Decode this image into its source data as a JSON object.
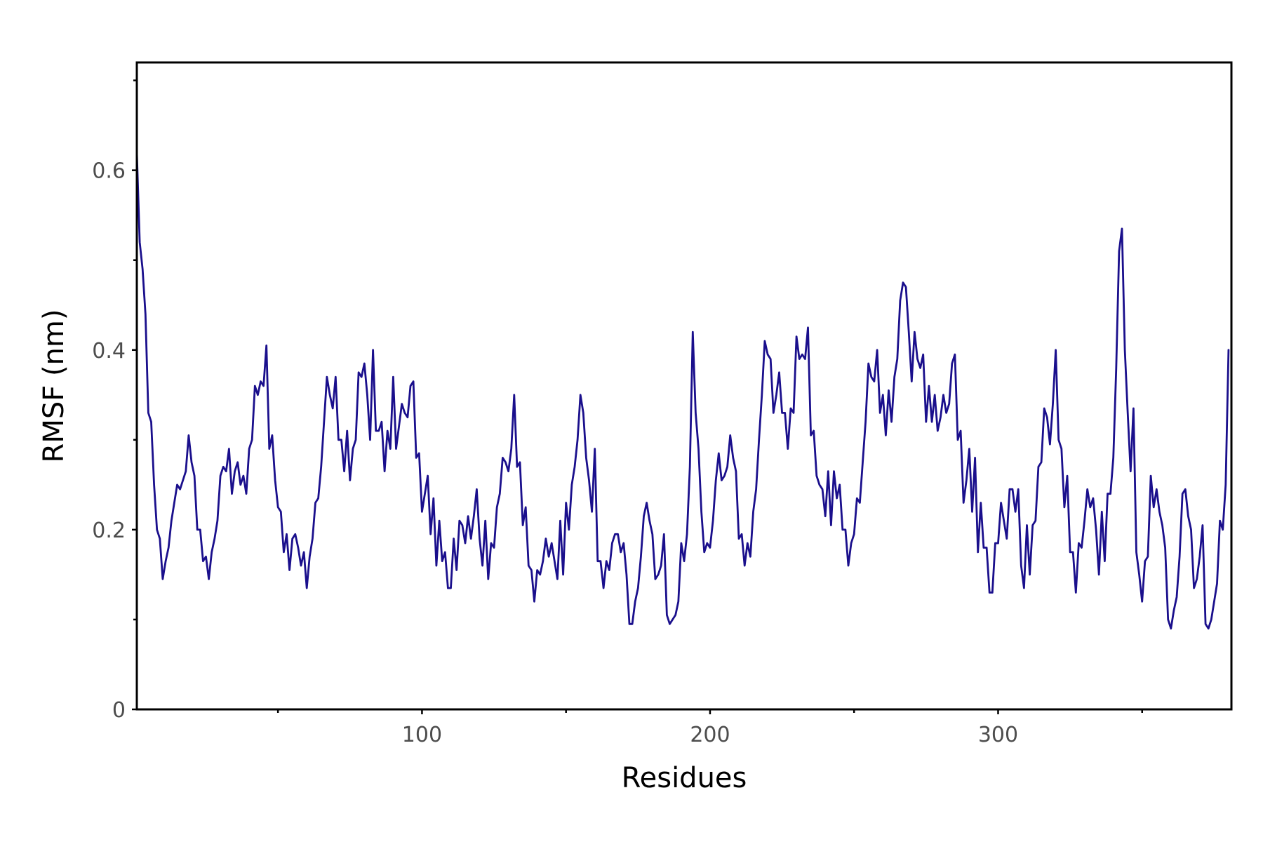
{
  "chart_data": {
    "type": "line",
    "title": "",
    "xlabel": "Residues",
    "ylabel": "RMSF (nm)",
    "xlim": [
      1,
      381
    ],
    "ylim": [
      0,
      0.72
    ],
    "grid": false,
    "legend": "none",
    "x_ticks": [
      {
        "value": 100,
        "label": "100"
      },
      {
        "value": 200,
        "label": "200"
      },
      {
        "value": 300,
        "label": "300"
      }
    ],
    "x_minor_ticks": [
      50,
      150,
      250,
      350
    ],
    "y_ticks": [
      {
        "value": 0,
        "label": "0"
      },
      {
        "value": 0.2,
        "label": "0.2"
      },
      {
        "value": 0.4,
        "label": "0.4"
      },
      {
        "value": 0.6,
        "label": "0.6"
      }
    ],
    "y_minor_ticks": [
      0.1,
      0.3,
      0.5,
      0.7
    ],
    "series": [
      {
        "color": "#1a0f8c",
        "start_x": 1,
        "step": 1,
        "values": [
          0.62,
          0.52,
          0.49,
          0.44,
          0.33,
          0.32,
          0.25,
          0.2,
          0.19,
          0.145,
          0.165,
          0.18,
          0.21,
          0.23,
          0.25,
          0.245,
          0.255,
          0.265,
          0.305,
          0.275,
          0.26,
          0.2,
          0.2,
          0.165,
          0.17,
          0.145,
          0.175,
          0.19,
          0.21,
          0.26,
          0.27,
          0.265,
          0.29,
          0.24,
          0.265,
          0.275,
          0.25,
          0.26,
          0.24,
          0.29,
          0.3,
          0.36,
          0.35,
          0.365,
          0.36,
          0.405,
          0.29,
          0.305,
          0.255,
          0.225,
          0.22,
          0.175,
          0.195,
          0.155,
          0.19,
          0.195,
          0.18,
          0.16,
          0.175,
          0.135,
          0.17,
          0.19,
          0.23,
          0.235,
          0.27,
          0.32,
          0.37,
          0.35,
          0.335,
          0.37,
          0.3,
          0.3,
          0.265,
          0.31,
          0.255,
          0.29,
          0.3,
          0.375,
          0.37,
          0.385,
          0.35,
          0.3,
          0.4,
          0.31,
          0.31,
          0.32,
          0.265,
          0.31,
          0.29,
          0.37,
          0.29,
          0.315,
          0.34,
          0.33,
          0.325,
          0.36,
          0.365,
          0.28,
          0.285,
          0.22,
          0.24,
          0.26,
          0.195,
          0.235,
          0.16,
          0.21,
          0.165,
          0.175,
          0.135,
          0.135,
          0.19,
          0.155,
          0.21,
          0.205,
          0.185,
          0.215,
          0.19,
          0.215,
          0.245,
          0.19,
          0.16,
          0.21,
          0.145,
          0.185,
          0.18,
          0.225,
          0.24,
          0.28,
          0.275,
          0.265,
          0.29,
          0.35,
          0.27,
          0.275,
          0.205,
          0.225,
          0.16,
          0.155,
          0.12,
          0.155,
          0.15,
          0.165,
          0.19,
          0.17,
          0.185,
          0.165,
          0.145,
          0.21,
          0.15,
          0.23,
          0.2,
          0.25,
          0.27,
          0.3,
          0.35,
          0.33,
          0.28,
          0.255,
          0.22,
          0.29,
          0.165,
          0.165,
          0.135,
          0.165,
          0.155,
          0.185,
          0.195,
          0.195,
          0.175,
          0.185,
          0.15,
          0.095,
          0.095,
          0.12,
          0.135,
          0.17,
          0.215,
          0.23,
          0.21,
          0.195,
          0.145,
          0.15,
          0.16,
          0.195,
          0.105,
          0.095,
          0.1,
          0.105,
          0.12,
          0.185,
          0.165,
          0.195,
          0.27,
          0.42,
          0.33,
          0.29,
          0.22,
          0.175,
          0.185,
          0.18,
          0.21,
          0.255,
          0.285,
          0.255,
          0.26,
          0.27,
          0.305,
          0.28,
          0.265,
          0.19,
          0.195,
          0.16,
          0.185,
          0.17,
          0.22,
          0.245,
          0.3,
          0.35,
          0.41,
          0.395,
          0.39,
          0.33,
          0.35,
          0.375,
          0.33,
          0.33,
          0.29,
          0.335,
          0.33,
          0.415,
          0.39,
          0.395,
          0.39,
          0.425,
          0.305,
          0.31,
          0.26,
          0.25,
          0.245,
          0.215,
          0.265,
          0.205,
          0.265,
          0.235,
          0.25,
          0.2,
          0.2,
          0.16,
          0.185,
          0.195,
          0.235,
          0.23,
          0.275,
          0.32,
          0.385,
          0.37,
          0.365,
          0.4,
          0.33,
          0.35,
          0.305,
          0.355,
          0.32,
          0.37,
          0.39,
          0.455,
          0.475,
          0.47,
          0.42,
          0.365,
          0.42,
          0.39,
          0.38,
          0.395,
          0.32,
          0.36,
          0.32,
          0.35,
          0.31,
          0.325,
          0.35,
          0.33,
          0.34,
          0.385,
          0.395,
          0.3,
          0.31,
          0.23,
          0.255,
          0.29,
          0.22,
          0.28,
          0.175,
          0.23,
          0.18,
          0.18,
          0.13,
          0.13,
          0.185,
          0.185,
          0.23,
          0.21,
          0.19,
          0.245,
          0.245,
          0.22,
          0.245,
          0.16,
          0.135,
          0.205,
          0.15,
          0.205,
          0.21,
          0.27,
          0.275,
          0.335,
          0.325,
          0.295,
          0.34,
          0.4,
          0.3,
          0.29,
          0.225,
          0.26,
          0.175,
          0.175,
          0.13,
          0.185,
          0.18,
          0.21,
          0.245,
          0.225,
          0.235,
          0.2,
          0.15,
          0.22,
          0.165,
          0.24,
          0.24,
          0.28,
          0.38,
          0.51,
          0.535,
          0.4,
          0.33,
          0.265,
          0.335,
          0.175,
          0.15,
          0.12,
          0.165,
          0.17,
          0.26,
          0.225,
          0.245,
          0.22,
          0.205,
          0.18,
          0.1,
          0.09,
          0.11,
          0.125,
          0.17,
          0.24,
          0.245,
          0.215,
          0.2,
          0.135,
          0.145,
          0.17,
          0.205,
          0.095,
          0.09,
          0.1,
          0.12,
          0.14,
          0.21,
          0.2,
          0.25,
          0.4
        ]
      }
    ]
  }
}
